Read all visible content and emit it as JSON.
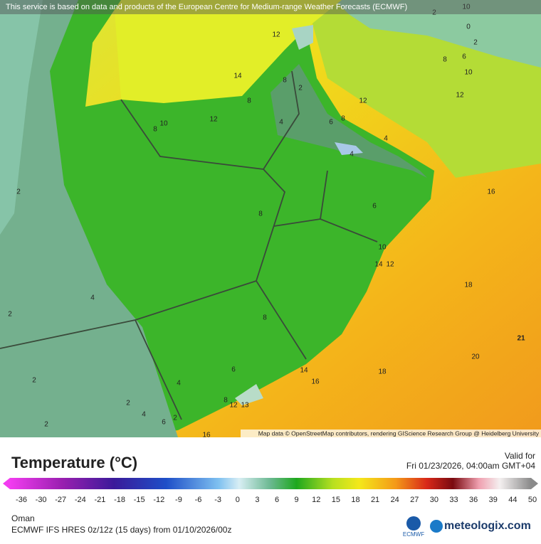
{
  "banner": "This service is based on data and products of the European Centre for Medium-range Weather Forecasts (ECMWF)",
  "map": {
    "contour_labels": [
      10,
      2,
      0,
      2,
      6,
      8,
      10,
      12,
      14,
      8,
      12,
      12,
      10,
      12,
      8,
      2,
      8,
      4,
      6,
      8,
      4,
      4,
      2,
      16,
      8,
      6,
      10,
      14,
      12,
      18,
      4,
      2,
      8,
      21,
      20,
      18,
      6,
      14,
      16,
      2,
      4,
      2,
      8,
      12,
      13,
      4,
      2,
      6,
      2,
      16
    ]
  },
  "attribution": "Map data © OpenStreetMap contributors, rendering GIScience Research Group @ Heidelberg University",
  "legend": {
    "title": "Temperature (°C)",
    "valid_label": "Valid for",
    "valid_time": "Fri 01/23/2026, 04:00am GMT+04",
    "ticks": [
      -36,
      -30,
      -27,
      -24,
      -21,
      -18,
      -15,
      -12,
      -9,
      -6,
      -3,
      0,
      3,
      6,
      9,
      12,
      15,
      18,
      21,
      24,
      27,
      30,
      33,
      36,
      39,
      44,
      50
    ]
  },
  "footer": {
    "region": "Oman",
    "model": "ECMWF IFS HRES 0z/12z (15 days) from 01/10/2026/00z",
    "logo_ecmwf": "ECMWF",
    "logo_brand": "meteologix.com"
  }
}
